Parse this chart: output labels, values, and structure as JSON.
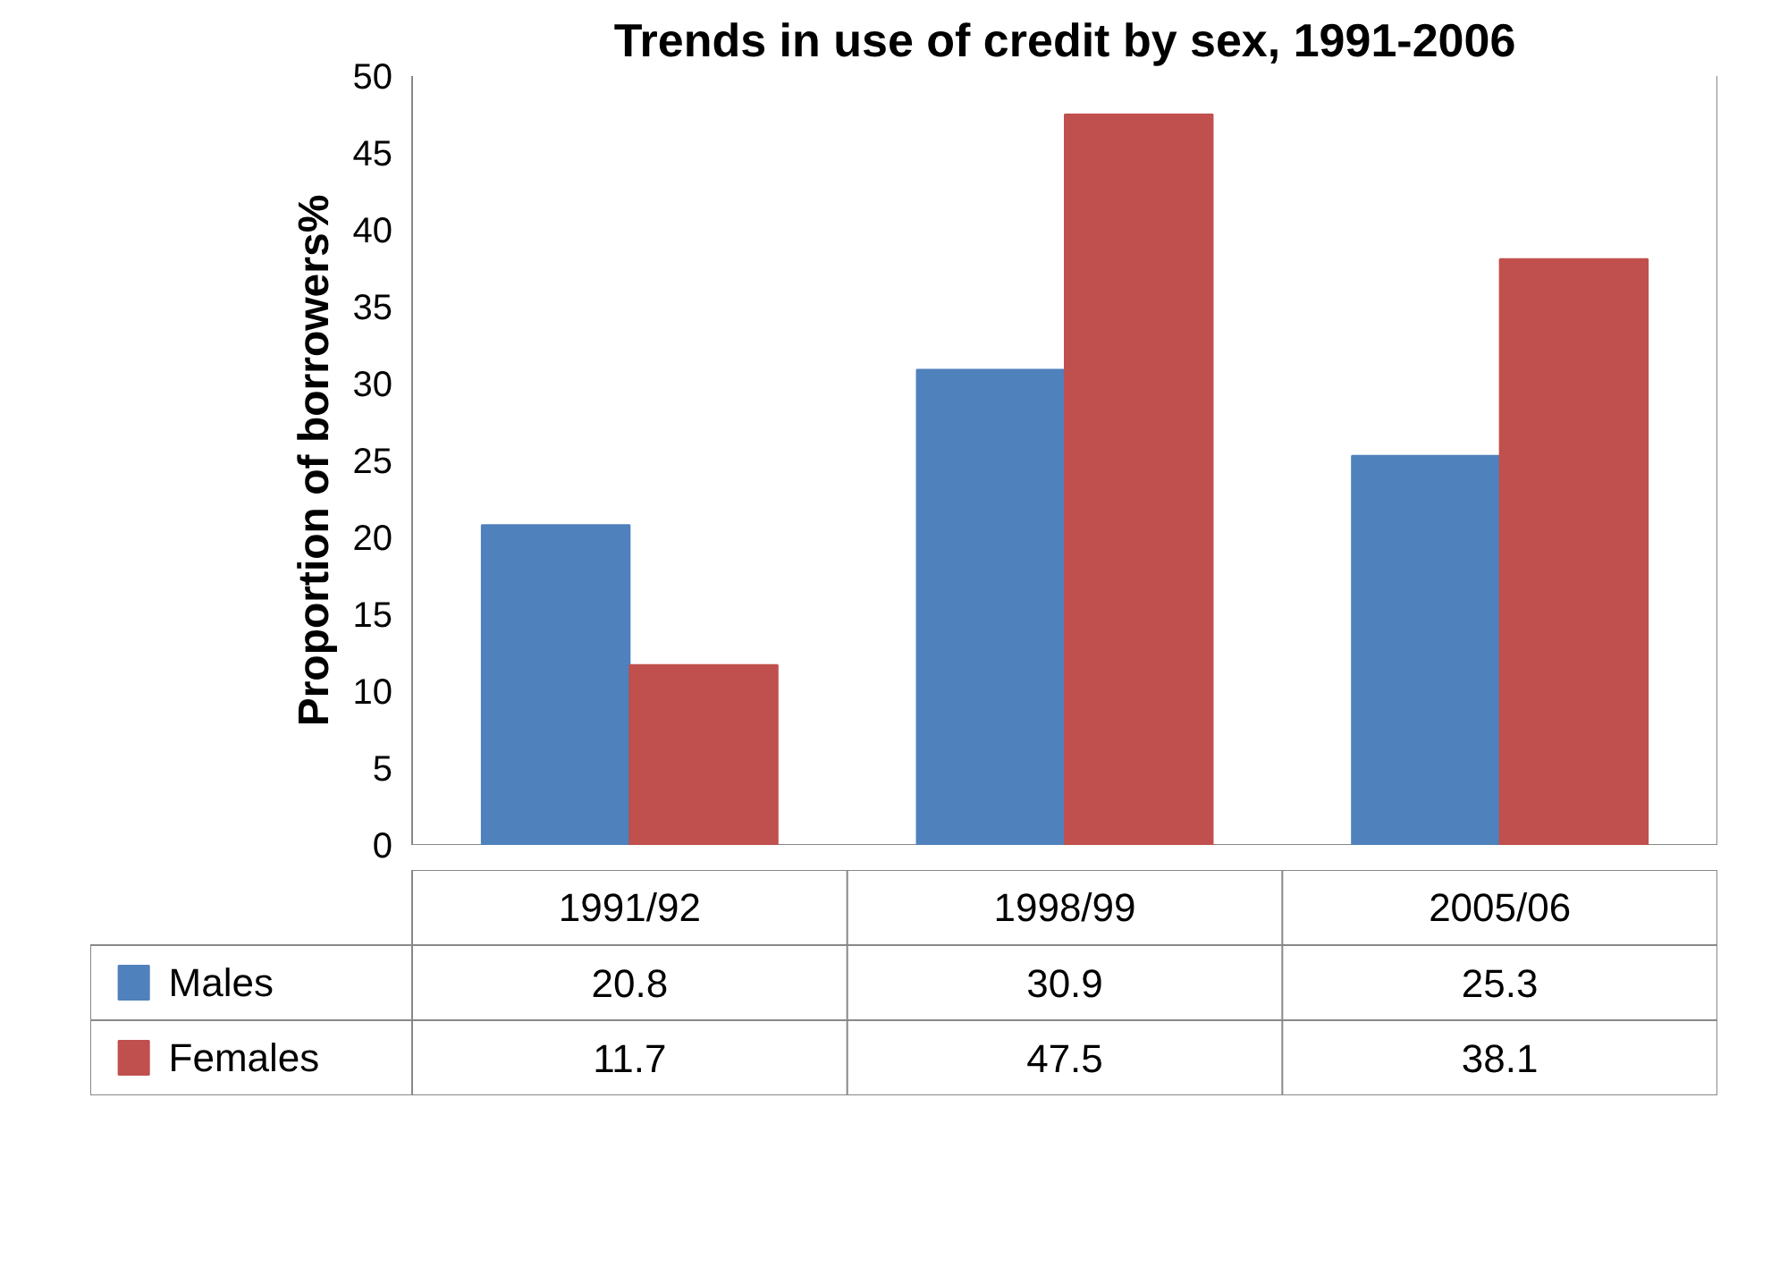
{
  "chart_data": {
    "type": "bar",
    "title": "Trends in use of credit by sex, 1991-2006",
    "ylabel": "Proportion of borrowers%",
    "categories": [
      "1991/92",
      "1998/99",
      "2005/06"
    ],
    "series": [
      {
        "name": "Males",
        "color": "#4f81bd",
        "values": [
          20.8,
          30.9,
          25.3
        ]
      },
      {
        "name": "Females",
        "color": "#c0504d",
        "values": [
          11.7,
          47.5,
          38.1
        ]
      }
    ],
    "ylim": [
      0,
      50
    ],
    "yticks": [
      0,
      5,
      10,
      15,
      20,
      25,
      30,
      35,
      40,
      45,
      50
    ],
    "grid": false,
    "legend": "bottom",
    "data_labels": true
  }
}
